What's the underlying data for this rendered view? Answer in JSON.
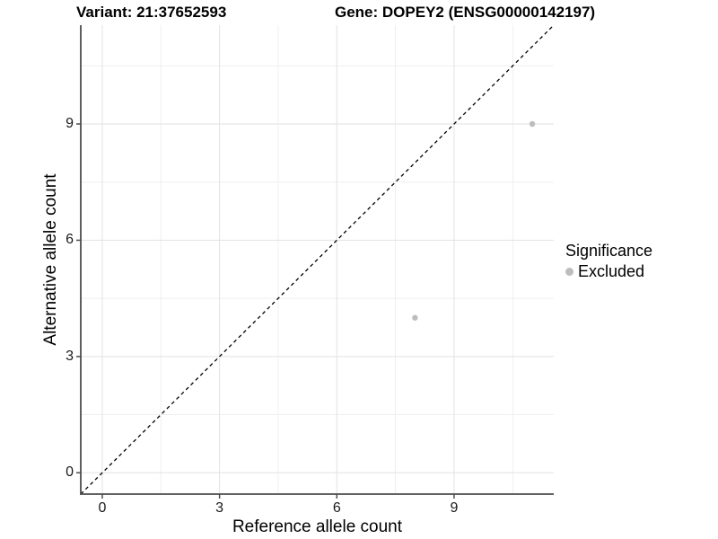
{
  "titles": {
    "variant": "Variant: 21:37652593",
    "gene": "Gene: DOPEY2 (ENSG00000142197)"
  },
  "chart_data": {
    "type": "scatter",
    "xlabel": "Reference allele count",
    "ylabel": "Alternative allele count",
    "xlim": [
      -0.55,
      11.55
    ],
    "ylim": [
      -0.55,
      11.55
    ],
    "x_ticks": [
      0,
      3,
      6,
      9
    ],
    "y_ticks": [
      0,
      3,
      6,
      9
    ],
    "x_minor": [
      1.5,
      4.5,
      7.5,
      10.5
    ],
    "y_minor": [
      1.5,
      4.5,
      7.5,
      10.5
    ],
    "grid": "major+minor light grey on white panel",
    "identity_line": {
      "equation": "y = x",
      "style": "dashed",
      "color": "#000000"
    },
    "series": [
      {
        "name": "Excluded",
        "color": "#bdbdbd",
        "point_radius": 3.2,
        "points": [
          [
            8,
            4
          ],
          [
            11,
            9
          ]
        ]
      }
    ],
    "legend": {
      "title": "Significance",
      "position": "right",
      "items": [
        {
          "label": "Excluded",
          "color": "#bdbdbd"
        }
      ]
    },
    "colors": {
      "grid_major": "#e2e2e2",
      "grid_minor": "#efefef",
      "axis": "#4d4d4d",
      "background": "#ffffff"
    }
  }
}
